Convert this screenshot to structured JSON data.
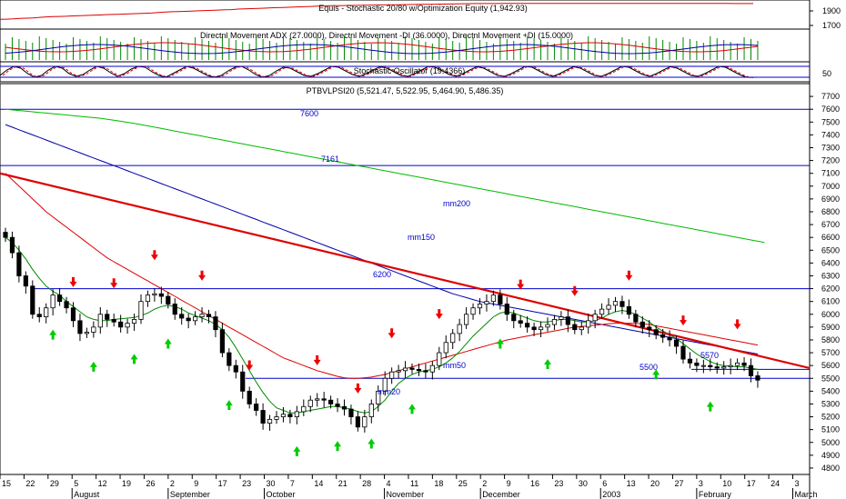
{
  "panels": {
    "equity": {
      "title": "Equis - Stochastic 20/80  w/Optimization Equity (1,942.93)",
      "ticks": [
        "1900",
        "1700"
      ]
    },
    "dmi": {
      "title": "Directnl Movement ADX (27.0000), Directnl Movement -DI (36.0000), Directnl Movement +DI (15.0000)"
    },
    "stoch": {
      "title": "Stochastic Oscillator (19.4366)",
      "ticks": [
        "50"
      ]
    },
    "price": {
      "title": "PTBVLPSI20 (5,521.47, 5,522.95, 5,464.90, 5,486.35)"
    }
  },
  "chart_data": {
    "type": "candlestick",
    "symbol": "PTBVLPSI20",
    "ohlc_last": {
      "open": 5521.47,
      "high": 5522.95,
      "low": 5464.9,
      "close": 5486.35
    },
    "ylim": [
      4750,
      7800
    ],
    "y_ticks": [
      7700,
      7600,
      7500,
      7400,
      7300,
      7200,
      7100,
      7000,
      6900,
      6800,
      6700,
      6600,
      6500,
      6400,
      6300,
      6200,
      6100,
      6000,
      5900,
      5800,
      5700,
      5600,
      5500,
      5400,
      5300,
      5200,
      5100,
      5000,
      4900,
      4800
    ],
    "x_ticks": [
      "15",
      "22",
      "29",
      "5",
      "12",
      "19",
      "26",
      "2",
      "9",
      "17",
      "23",
      "30",
      "7",
      "14",
      "21",
      "28",
      "4",
      "11",
      "18",
      "25",
      "2",
      "9",
      "16",
      "23",
      "30",
      "6",
      "13",
      "20",
      "27",
      "3",
      "10",
      "17",
      "24",
      "3"
    ],
    "month_labels": [
      "August",
      "September",
      "October",
      "November",
      "December",
      "2003",
      "February",
      "March"
    ],
    "horizontal_lines": [
      {
        "label": "7600",
        "value": 7600
      },
      {
        "label": "7161",
        "value": 7161
      },
      {
        "label": "6200",
        "value": 6200
      },
      {
        "label": "5500",
        "value": 5500
      }
    ],
    "extra_line_label": "5570",
    "annotations": [
      "mm200",
      "mm150",
      "mm50",
      "mm20"
    ],
    "closes": [
      6600,
      6480,
      6300,
      6220,
      6000,
      5980,
      6050,
      6150,
      6100,
      6050,
      5950,
      5850,
      5860,
      5900,
      6000,
      5960,
      5940,
      5900,
      5930,
      5960,
      6100,
      6150,
      6160,
      6140,
      6080,
      6000,
      5970,
      5950,
      5980,
      6000,
      5980,
      5880,
      5700,
      5600,
      5550,
      5400,
      5300,
      5250,
      5150,
      5180,
      5200,
      5220,
      5200,
      5240,
      5280,
      5330,
      5340,
      5330,
      5300,
      5280,
      5260,
      5200,
      5120,
      5200,
      5300,
      5400,
      5500,
      5550,
      5560,
      5580,
      5570,
      5560,
      5550,
      5600,
      5700,
      5780,
      5850,
      5920,
      6000,
      6050,
      6080,
      6100,
      6150,
      6080,
      6000,
      5950,
      5930,
      5900,
      5880,
      5900,
      5920,
      5960,
      5980,
      5920,
      5880,
      5900,
      5950,
      6000,
      6040,
      6070,
      6100,
      6060,
      6000,
      5940,
      5900,
      5880,
      5840,
      5820,
      5800,
      5750,
      5650,
      5620,
      5600,
      5600,
      5590,
      5580,
      5590,
      5600,
      5620,
      5600,
      5520,
      5486
    ],
    "mm20": [
      6600,
      6560,
      6500,
      6430,
      6350,
      6280,
      6220,
      6180,
      6150,
      6100,
      6060,
      6020,
      5980,
      5960,
      5950,
      5950,
      5960,
      5965,
      5970,
      5975,
      5990,
      6010,
      6040,
      6060,
      6070,
      6060,
      6040,
      6010,
      5990,
      5970,
      5950,
      5920,
      5880,
      5820,
      5740,
      5650,
      5560,
      5470,
      5390,
      5320,
      5270,
      5250,
      5230,
      5230,
      5240,
      5250,
      5260,
      5270,
      5280,
      5280,
      5270,
      5260,
      5240,
      5230,
      5240,
      5280,
      5330,
      5400,
      5460,
      5500,
      5530,
      5550,
      5560,
      5570,
      5590,
      5620,
      5660,
      5710,
      5770,
      5830,
      5880,
      5930,
      5980,
      6010,
      6020,
      6010,
      5990,
      5970,
      5950,
      5940,
      5940,
      5950,
      5960,
      5960,
      5950,
      5940,
      5940,
      5950,
      5970,
      6000,
      6020,
      6030,
      6020,
      6000,
      5970,
      5940,
      5900,
      5870,
      5840,
      5810,
      5770,
      5730,
      5690,
      5660,
      5630,
      5610,
      5600,
      5595,
      5590,
      5590,
      5580,
      5570
    ],
    "mm50": [
      7100,
      7050,
      7000,
      6950,
      6900,
      6850,
      6800,
      6760,
      6720,
      6680,
      6640,
      6600,
      6560,
      6520,
      6480,
      6440,
      6410,
      6380,
      6350,
      6320,
      6290,
      6260,
      6230,
      6200,
      6170,
      6140,
      6110,
      6080,
      6050,
      6020,
      5990,
      5960,
      5930,
      5900,
      5870,
      5840,
      5810,
      5780,
      5750,
      5720,
      5690,
      5660,
      5640,
      5620,
      5600,
      5580,
      5560,
      5545,
      5530,
      5515,
      5505,
      5500,
      5500,
      5505,
      5510,
      5520,
      5530,
      5545,
      5560,
      5575,
      5590,
      5605,
      5620,
      5635,
      5650,
      5665,
      5680,
      5695,
      5710,
      5725,
      5740,
      5755,
      5770,
      5785,
      5800,
      5810,
      5820,
      5830,
      5840,
      5850,
      5860,
      5870,
      5880,
      5890,
      5900,
      5905,
      5910,
      5915,
      5920,
      5925,
      5930,
      5930,
      5930,
      5928,
      5925,
      5920,
      5910,
      5900,
      5890,
      5880,
      5870,
      5860,
      5850,
      5840,
      5830,
      5820,
      5810,
      5800,
      5790,
      5780,
      5770,
      5760
    ],
    "mm150": [
      7480,
      7460,
      7440,
      7420,
      7400,
      7380,
      7360,
      7340,
      7320,
      7300,
      7280,
      7260,
      7240,
      7220,
      7200,
      7180,
      7160,
      7140,
      7120,
      7100,
      7080,
      7060,
      7040,
      7020,
      7000,
      6980,
      6960,
      6940,
      6920,
      6900,
      6880,
      6860,
      6840,
      6820,
      6800,
      6780,
      6760,
      6740,
      6720,
      6700,
      6680,
      6660,
      6640,
      6620,
      6600,
      6580,
      6560,
      6540,
      6520,
      6500,
      6480,
      6460,
      6440,
      6420,
      6400,
      6380,
      6360,
      6340,
      6320,
      6300,
      6280,
      6260,
      6240,
      6220,
      6200,
      6180,
      6160,
      6145,
      6130,
      6115,
      6100,
      6090,
      6080,
      6070,
      6060,
      6050,
      6040,
      6030,
      6020,
      6010,
      6000,
      5990,
      5980,
      5970,
      5960,
      5950,
      5940,
      5930,
      5920,
      5910,
      5900,
      5890,
      5880,
      5870,
      5860,
      5850,
      5840,
      5830,
      5820,
      5810,
      5800,
      5790,
      5780,
      5770,
      5760,
      5750,
      5740,
      5730,
      5720,
      5710,
      5700,
      5690
    ],
    "mm200": [
      7600,
      7595,
      7590,
      7585,
      7580,
      7575,
      7570,
      7565,
      7560,
      7555,
      7550,
      7545,
      7540,
      7535,
      7530,
      7522,
      7514,
      7506,
      7498,
      7490,
      7480,
      7470,
      7460,
      7450,
      7440,
      7430,
      7420,
      7410,
      7400,
      7390,
      7380,
      7370,
      7360,
      7350,
      7340,
      7330,
      7320,
      7310,
      7300,
      7290,
      7280,
      7270,
      7260,
      7250,
      7240,
      7230,
      7220,
      7210,
      7200,
      7190,
      7180,
      7170,
      7160,
      7150,
      7140,
      7130,
      7120,
      7110,
      7100,
      7090,
      7080,
      7070,
      7060,
      7050,
      7040,
      7030,
      7020,
      7010,
      7000,
      6990,
      6980,
      6970,
      6960,
      6950,
      6940,
      6930,
      6920,
      6910,
      6900,
      6890,
      6880,
      6870,
      6860,
      6850,
      6840,
      6830,
      6820,
      6810,
      6800,
      6790,
      6780,
      6770,
      6760,
      6750,
      6740,
      6730,
      6720,
      6710,
      6700,
      6690,
      6680,
      6670,
      6660,
      6650,
      6640,
      6630,
      6620,
      6610,
      6600,
      6590,
      6580,
      6570,
      6560
    ],
    "trendline": {
      "start": 7100,
      "end": 5580
    },
    "buy_signals": [
      7,
      13,
      19,
      24,
      33,
      43,
      49,
      54,
      60,
      73,
      80,
      96,
      104
    ],
    "sell_signals": [
      10,
      16,
      22,
      29,
      36,
      46,
      52,
      57,
      64,
      76,
      84,
      92,
      100,
      108
    ],
    "equity_values": [
      1780,
      1782,
      1785,
      1790,
      1792,
      1795,
      1800,
      1805,
      1808,
      1810,
      1812,
      1815,
      1818,
      1820,
      1822,
      1825,
      1828,
      1830,
      1832,
      1835,
      1838,
      1840,
      1842,
      1845,
      1850,
      1855,
      1858,
      1860,
      1862,
      1865,
      1868,
      1870,
      1872,
      1875,
      1878,
      1880,
      1885,
      1888,
      1890,
      1892,
      1895,
      1898,
      1900,
      1902,
      1905,
      1908,
      1910,
      1912,
      1915,
      1918,
      1920,
      1921,
      1922,
      1923,
      1924,
      1925,
      1926,
      1927,
      1928,
      1929,
      1930,
      1931,
      1932,
      1933,
      1934,
      1935,
      1936,
      1937,
      1938,
      1939,
      1940,
      1941,
      1942,
      1942,
      1942,
      1942,
      1943,
      1943,
      1943,
      1943,
      1943,
      1943,
      1943,
      1943,
      1943,
      1943,
      1943,
      1943,
      1943,
      1943,
      1943,
      1943,
      1943,
      1943,
      1943,
      1943,
      1943,
      1943,
      1943,
      1943,
      1943,
      1943,
      1943,
      1943,
      1943,
      1943,
      1943,
      1943,
      1943,
      1943,
      1943,
      1942,
      1942,
      1942,
      1942
    ],
    "stoch_values": [
      30,
      60,
      80,
      70,
      40,
      20,
      30,
      60,
      80,
      70,
      40,
      25,
      35,
      60,
      80,
      70,
      45,
      25,
      40,
      65,
      80,
      75,
      50,
      30,
      20,
      40,
      60,
      80,
      70,
      50,
      30,
      20,
      30,
      55,
      75,
      80,
      60,
      35,
      20,
      30,
      55,
      75,
      70,
      50,
      30,
      25,
      40,
      60,
      80,
      75,
      55,
      35,
      25,
      40,
      60,
      78,
      70,
      50,
      30,
      25,
      40,
      60,
      80,
      75,
      55,
      35,
      25,
      40,
      60,
      78,
      70,
      50,
      30,
      25,
      40,
      60,
      80,
      75,
      55,
      35,
      25,
      40,
      60,
      78,
      70,
      50,
      30,
      25,
      40,
      60,
      80,
      75,
      55,
      35,
      25,
      40,
      60,
      78,
      70,
      50,
      30,
      25,
      40,
      60,
      80,
      75,
      55,
      35,
      20,
      19
    ]
  }
}
